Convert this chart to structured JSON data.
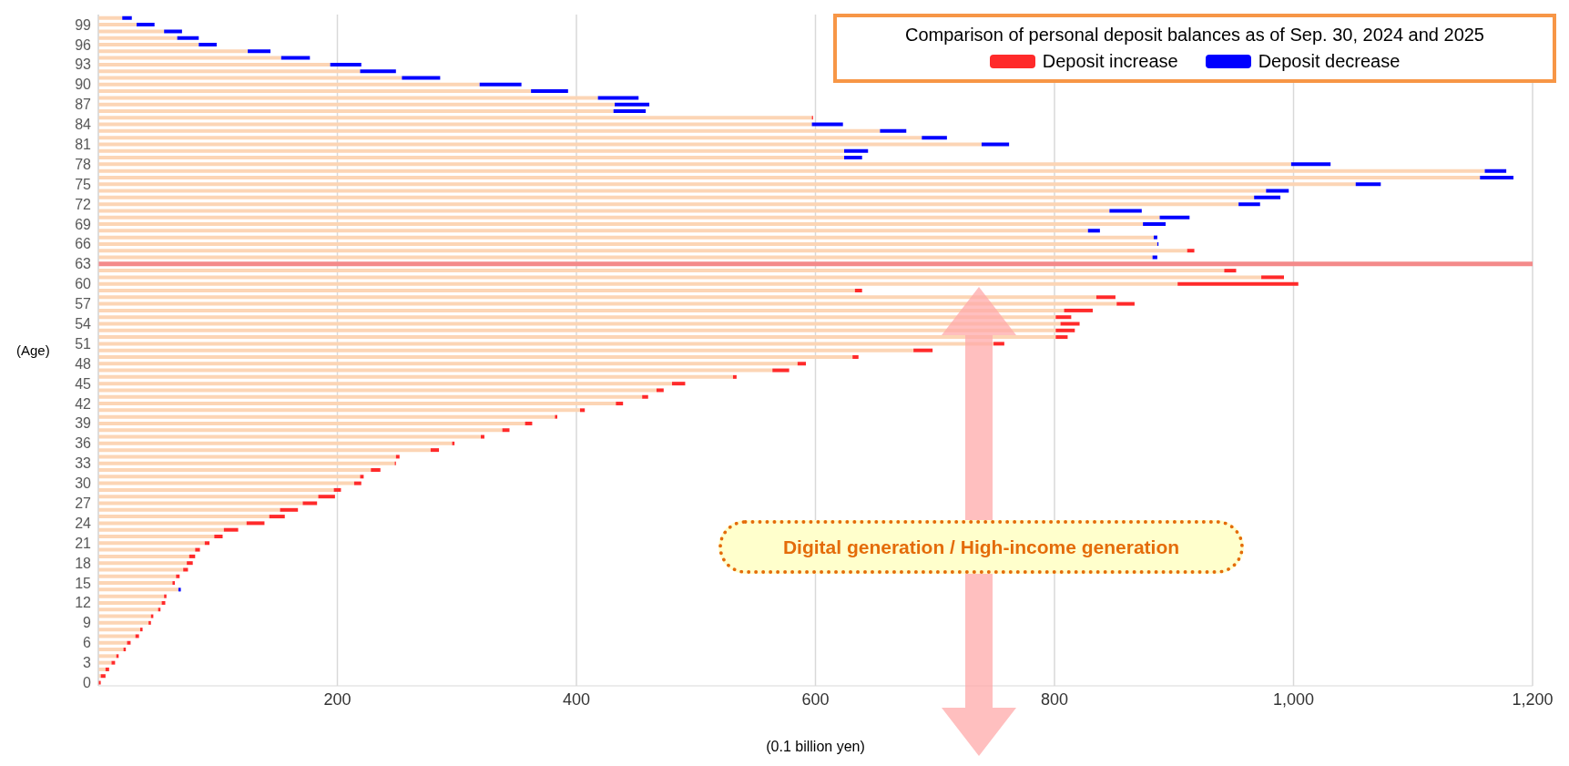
{
  "chart_data": {
    "type": "bar",
    "orientation": "horizontal",
    "stacked": true,
    "legend_title": "Comparison of personal deposit balances as of Sep. 30, 2024 and 2025",
    "xlabel": "(0.1 billion yen)",
    "ylabel": "(Age)",
    "annotations": [
      "Digital generation / High-income generation"
    ],
    "categories": [
      null,
      "99",
      null,
      null,
      "96",
      null,
      null,
      "93",
      null,
      null,
      "90",
      null,
      null,
      "87",
      null,
      null,
      "84",
      null,
      null,
      "81",
      null,
      null,
      "78",
      null,
      null,
      "75",
      null,
      null,
      "72",
      null,
      null,
      "69",
      null,
      null,
      "66",
      null,
      null,
      "63",
      null,
      null,
      "60",
      null,
      null,
      "57",
      null,
      null,
      "54",
      null,
      null,
      "51",
      null,
      null,
      "48",
      null,
      null,
      "45",
      null,
      null,
      "42",
      null,
      null,
      "39",
      null,
      null,
      "36",
      null,
      null,
      "33",
      null,
      null,
      "30",
      null,
      null,
      "27",
      null,
      null,
      "24",
      null,
      null,
      "21",
      null,
      null,
      "18",
      null,
      null,
      "15",
      null,
      null,
      "12",
      null,
      null,
      "9",
      null,
      null,
      "6",
      null,
      null,
      "3",
      null,
      null,
      "0"
    ],
    "series": [
      {
        "color": "#fcd5b5",
        "values": [
          20,
          32,
          55,
          66,
          84,
          125,
          153,
          194,
          219,
          254,
          319,
          362,
          418,
          432,
          431,
          597,
          597,
          654,
          689,
          739,
          624,
          624,
          998,
          1160,
          1156,
          1052,
          977,
          967,
          954,
          846,
          888,
          874,
          828,
          883,
          886,
          911,
          882,
          null,
          942,
          973,
          903,
          633,
          835,
          852,
          808,
          801,
          805,
          801,
          801,
          749,
          682,
          631,
          585,
          564,
          531,
          480,
          467,
          455,
          433,
          403,
          382,
          357,
          338,
          320,
          296,
          278,
          249,
          248,
          228,
          219,
          214,
          197,
          184,
          171,
          152,
          143,
          124,
          105,
          97,
          89,
          81,
          76,
          74,
          71,
          65,
          62,
          67,
          55,
          53,
          50,
          44,
          42,
          35,
          31,
          24,
          21,
          15,
          11,
          6,
          2,
          0
        ]
      },
      {
        "name": "Deposit increase",
        "color": "#ff2a2a",
        "values": [
          null,
          null,
          null,
          null,
          null,
          null,
          null,
          null,
          null,
          null,
          null,
          null,
          null,
          null,
          null,
          1,
          null,
          null,
          null,
          null,
          null,
          null,
          null,
          null,
          null,
          null,
          null,
          null,
          null,
          null,
          null,
          null,
          null,
          null,
          null,
          6,
          null,
          null,
          10,
          19,
          101,
          6,
          16,
          15,
          24,
          13,
          16,
          16,
          10,
          9,
          16,
          5,
          7,
          14,
          3,
          11,
          6,
          5,
          6,
          4,
          2,
          6,
          6,
          3,
          2,
          7,
          3,
          1,
          8,
          3,
          6,
          6,
          14,
          12,
          15,
          13,
          15,
          12,
          7,
          4,
          4,
          5,
          5,
          4,
          3,
          2,
          null,
          2,
          3,
          2,
          2,
          2,
          2,
          3,
          3,
          2,
          2,
          3,
          3,
          4,
          2
        ]
      },
      {
        "name": "Deposit decrease",
        "color": "#0000ff",
        "values": [
          8,
          15,
          15,
          18,
          15,
          19,
          24,
          26,
          30,
          32,
          35,
          31,
          34,
          29,
          27,
          null,
          26,
          22,
          21,
          23,
          20,
          15,
          33,
          18,
          28,
          21,
          19,
          22,
          18,
          27,
          25,
          19,
          10,
          3,
          1,
          null,
          4,
          null,
          null,
          null,
          null,
          null,
          null,
          null,
          null,
          null,
          null,
          null,
          null,
          null,
          null,
          null,
          null,
          null,
          null,
          null,
          null,
          null,
          null,
          null,
          null,
          null,
          null,
          null,
          null,
          null,
          null,
          null,
          null,
          null,
          null,
          null,
          null,
          null,
          null,
          null,
          null,
          null,
          null,
          null,
          null,
          null,
          null,
          null,
          null,
          null,
          2,
          null,
          null,
          null,
          null,
          null,
          null,
          null,
          null,
          null,
          null,
          null,
          null,
          null,
          null
        ]
      }
    ],
    "xlim": [
      0,
      1200
    ],
    "xticks": [
      200,
      400,
      600,
      800,
      {
        "value": 1000,
        "label": "1,000"
      },
      {
        "value": 1200,
        "label": "1,200"
      }
    ],
    "ref_lines": [
      {
        "axis": "y",
        "value": "63",
        "color": "#f48a8a"
      }
    ],
    "grid": "x",
    "legend": "top right"
  }
}
